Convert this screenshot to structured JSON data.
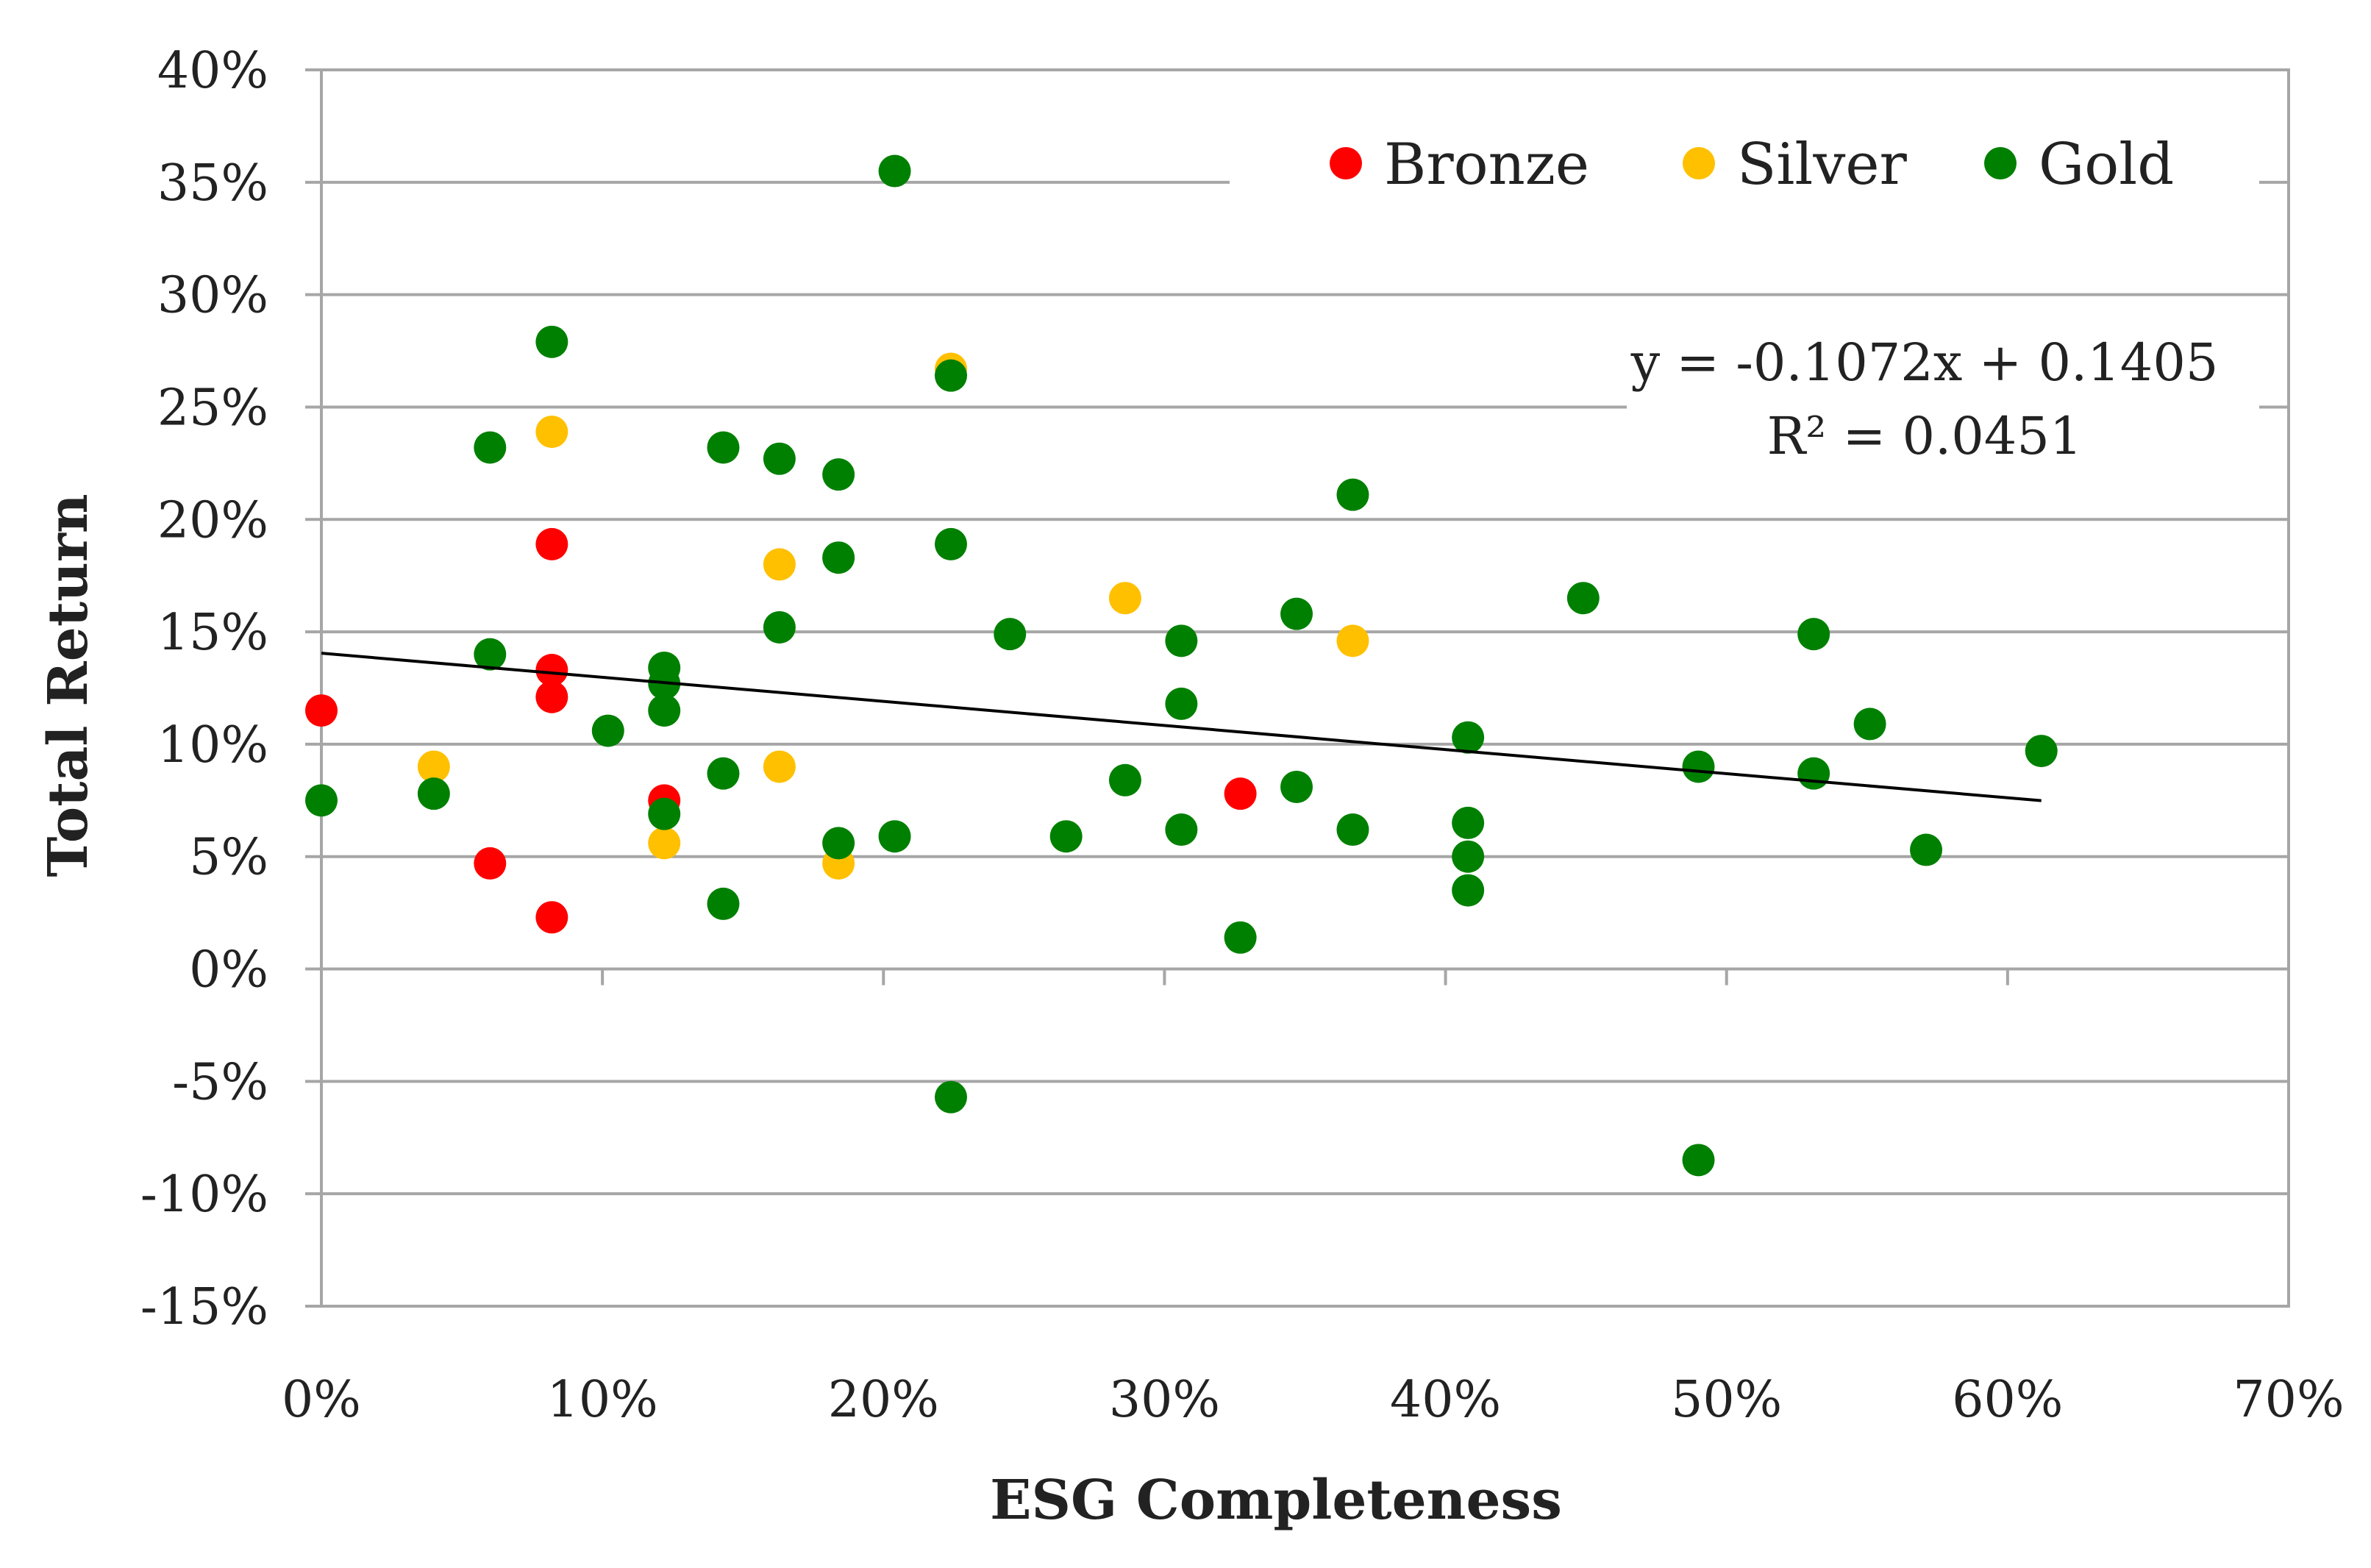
{
  "chart_data": {
    "type": "scatter",
    "title": "",
    "xlabel": "ESG Completeness",
    "ylabel": "Total Return",
    "xlim": [
      0,
      0.7
    ],
    "ylim": [
      -0.15,
      0.4
    ],
    "xticks": [
      0,
      0.1,
      0.2,
      0.3,
      0.4,
      0.5,
      0.6,
      0.7
    ],
    "yticks": [
      -0.15,
      -0.1,
      -0.05,
      0,
      0.05,
      0.1,
      0.15,
      0.2,
      0.25,
      0.3,
      0.35,
      0.4
    ],
    "xtick_labels": [
      "0%",
      "10%",
      "20%",
      "30%",
      "40%",
      "50%",
      "60%",
      "70%"
    ],
    "ytick_labels": [
      "-15%",
      "-10%",
      "-5%",
      "0%",
      "5%",
      "10%",
      "15%",
      "20%",
      "25%",
      "30%",
      "35%",
      "40%"
    ],
    "grid": "horizontal",
    "legend_position": "top-right",
    "trendline": {
      "equation": "y = -0.1072x + 0.1405",
      "r_squared": "R² = 0.0451",
      "slope": -0.1072,
      "intercept": 0.1405,
      "x_range": [
        0,
        0.612
      ],
      "color": "#000000"
    },
    "series": [
      {
        "name": "Bronze",
        "color": "#ff0000",
        "points": [
          [
            0.0,
            0.115
          ],
          [
            0.06,
            0.047
          ],
          [
            0.082,
            0.189
          ],
          [
            0.082,
            0.133
          ],
          [
            0.082,
            0.121
          ],
          [
            0.082,
            0.023
          ],
          [
            0.122,
            0.075
          ],
          [
            0.327,
            0.078
          ]
        ]
      },
      {
        "name": "Silver",
        "color": "#ffc000",
        "points": [
          [
            0.04,
            0.09
          ],
          [
            0.082,
            0.239
          ],
          [
            0.122,
            0.056
          ],
          [
            0.163,
            0.18
          ],
          [
            0.163,
            0.09
          ],
          [
            0.184,
            0.047
          ],
          [
            0.224,
            0.267
          ],
          [
            0.286,
            0.165
          ],
          [
            0.367,
            0.146
          ]
        ]
      },
      {
        "name": "Gold",
        "color": "#008000",
        "points": [
          [
            0.0,
            0.075
          ],
          [
            0.04,
            0.078
          ],
          [
            0.06,
            0.232
          ],
          [
            0.06,
            0.14
          ],
          [
            0.082,
            0.279
          ],
          [
            0.102,
            0.106
          ],
          [
            0.122,
            0.134
          ],
          [
            0.122,
            0.127
          ],
          [
            0.122,
            0.115
          ],
          [
            0.122,
            0.069
          ],
          [
            0.143,
            0.232
          ],
          [
            0.143,
            0.087
          ],
          [
            0.143,
            0.029
          ],
          [
            0.163,
            0.227
          ],
          [
            0.163,
            0.152
          ],
          [
            0.184,
            0.22
          ],
          [
            0.184,
            0.183
          ],
          [
            0.184,
            0.056
          ],
          [
            0.204,
            0.355
          ],
          [
            0.204,
            0.059
          ],
          [
            0.224,
            0.264
          ],
          [
            0.224,
            0.189
          ],
          [
            0.224,
            -0.057
          ],
          [
            0.245,
            0.149
          ],
          [
            0.265,
            0.059
          ],
          [
            0.286,
            0.084
          ],
          [
            0.306,
            0.146
          ],
          [
            0.306,
            0.118
          ],
          [
            0.306,
            0.062
          ],
          [
            0.327,
            0.014
          ],
          [
            0.347,
            0.158
          ],
          [
            0.347,
            0.081
          ],
          [
            0.367,
            0.211
          ],
          [
            0.367,
            0.062
          ],
          [
            0.408,
            0.103
          ],
          [
            0.408,
            0.065
          ],
          [
            0.408,
            0.05
          ],
          [
            0.408,
            0.035
          ],
          [
            0.449,
            0.165
          ],
          [
            0.49,
            0.09
          ],
          [
            0.49,
            -0.085
          ],
          [
            0.531,
            0.149
          ],
          [
            0.531,
            0.087
          ],
          [
            0.551,
            0.109
          ],
          [
            0.571,
            0.053
          ],
          [
            0.612,
            0.097
          ]
        ]
      }
    ]
  }
}
